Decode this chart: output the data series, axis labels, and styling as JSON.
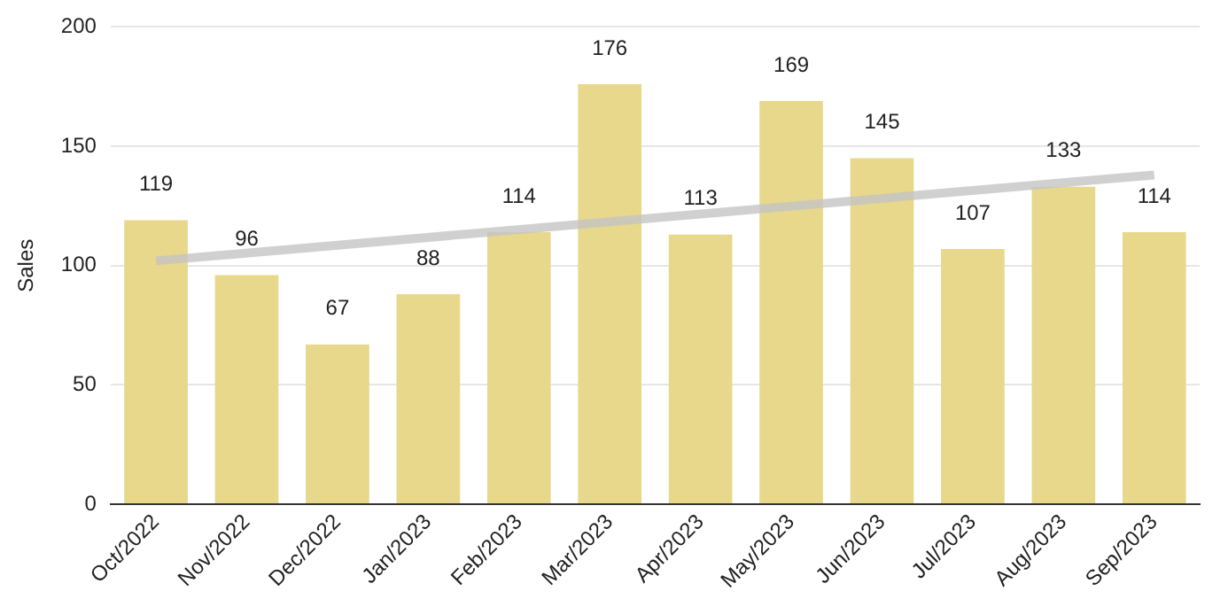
{
  "chart_data": {
    "type": "bar",
    "ylabel": "Sales",
    "categories": [
      "Oct/2022",
      "Nov/2022",
      "Dec/2022",
      "Jan/2023",
      "Feb/2023",
      "Mar/2023",
      "Apr/2023",
      "May/2023",
      "Jun/2023",
      "Jul/2023",
      "Aug/2023",
      "Sep/2023"
    ],
    "series": [
      {
        "color": "#e8d88c",
        "values": [
          119,
          96,
          67,
          88,
          114,
          176,
          113,
          169,
          145,
          107,
          133,
          114
        ],
        "value_labels": [
          "119",
          "96",
          "67",
          "88",
          "114",
          "176",
          "113",
          "169",
          "145",
          "107",
          "133",
          "114"
        ]
      },
      {
        "type": "line",
        "color": "#c4c4c4",
        "x": [
          "Oct/2022",
          "Sep/2023"
        ],
        "values": [
          102,
          138
        ]
      }
    ],
    "ylim": [
      0,
      200
    ],
    "yticks": [
      0,
      50,
      100,
      150,
      200
    ],
    "grid": "y",
    "legend": false,
    "marker": "none"
  }
}
